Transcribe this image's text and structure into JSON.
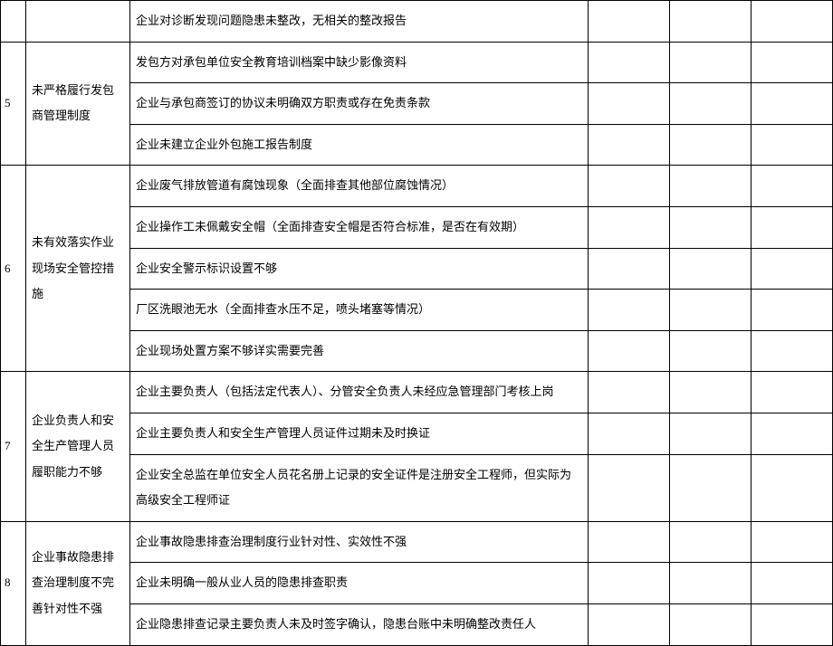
{
  "rows": [
    {
      "num": "",
      "category": "",
      "details": [
        "企业对诊断发现问题隐患未整改，无相关的整改报告"
      ]
    },
    {
      "num": "5",
      "category": "未严格履行发包商管理制度",
      "details": [
        "发包方对承包单位安全教育培训档案中缺少影像资料",
        "企业与承包商签订的协议未明确双方职责或存在免责条款",
        "企业未建立企业外包施工报告制度"
      ]
    },
    {
      "num": "6",
      "category": "未有效落实作业现场安全管控措施",
      "details": [
        "企业废气排放管道有腐蚀现象（全面排查其他部位腐蚀情况）",
        "企业操作工未佩戴安全帽（全面排查安全帽是否符合标准，是否在有效期）",
        "企业安全警示标识设置不够",
        "厂区洗眼池无水（全面排查水压不足，喷头堵塞等情况）",
        "企业现场处置方案不够详实需要完善"
      ]
    },
    {
      "num": "7",
      "category": "企业负责人和安全生产管理人员履职能力不够",
      "details": [
        "企业主要负责人（包括法定代表人）、分管安全负责人未经应急管理部门考核上岗",
        "企业主要负责人和安全生产管理人员证件过期未及时换证",
        "企业安全总监在单位安全人员花名册上记录的安全证件是注册安全工程师，但实际为高级安全工程师证"
      ]
    },
    {
      "num": "8",
      "category": "企业事故隐患排查治理制度不完善针对性不强",
      "details": [
        "企业事故隐患排查治理制度行业针对性、实效性不强",
        "企业未明确一般从业人员的隐患排查职责",
        "企业隐患排查记录主要负责人未及时签字确认，隐患台账中未明确整改责任人"
      ]
    }
  ]
}
